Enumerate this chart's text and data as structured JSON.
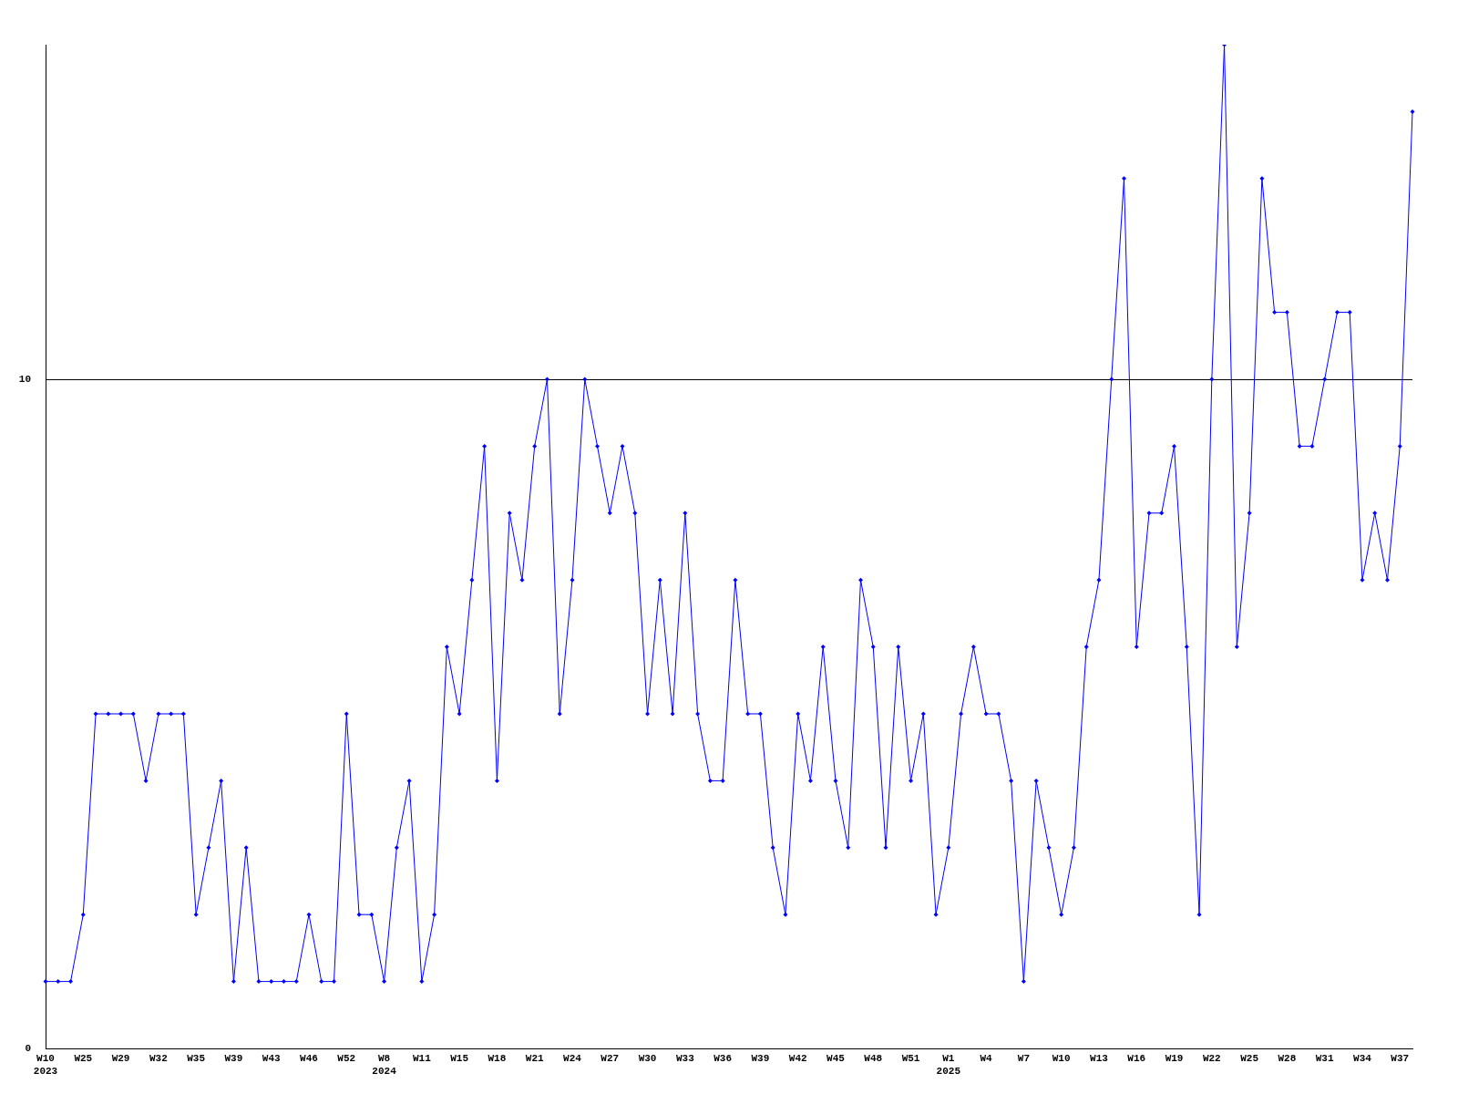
{
  "chart_data": {
    "type": "line",
    "categories": [
      "W10\n2023",
      null,
      null,
      "W25",
      null,
      null,
      "W29",
      null,
      null,
      "W32",
      null,
      null,
      "W35",
      null,
      null,
      "W39",
      null,
      null,
      "W43",
      null,
      null,
      "W46",
      null,
      null,
      "W52",
      null,
      null,
      "W8\n2024",
      null,
      null,
      "W11",
      null,
      null,
      "W15",
      null,
      null,
      "W18",
      null,
      null,
      "W21",
      null,
      null,
      "W24",
      null,
      null,
      "W27",
      null,
      null,
      "W30",
      null,
      null,
      "W33",
      null,
      null,
      "W36",
      null,
      null,
      "W39",
      null,
      null,
      "W42",
      null,
      null,
      "W45",
      null,
      null,
      "W48",
      null,
      null,
      "W51",
      null,
      null,
      "W1\n2025",
      null,
      null,
      "W4",
      null,
      null,
      "W7",
      null,
      null,
      "W10",
      null,
      null,
      "W13",
      null,
      null,
      "W16",
      null,
      null,
      "W19",
      null,
      null,
      "W22",
      null,
      null,
      "W25",
      null,
      null,
      "W28",
      null,
      null,
      "W31",
      null,
      null,
      "W34",
      null,
      null,
      "W37",
      null
    ],
    "series": [
      {
        "color": "#0000ff",
        "values": [
          1,
          1,
          1,
          2,
          5,
          5,
          5,
          5,
          4,
          5,
          5,
          5,
          2,
          3,
          4,
          1,
          3,
          1,
          1,
          1,
          1,
          2,
          1,
          1,
          5,
          2,
          2,
          1,
          3,
          4,
          1,
          2,
          6,
          5,
          7,
          9,
          4,
          8,
          7,
          9,
          10,
          5,
          7,
          10,
          9,
          8,
          9,
          8,
          5,
          7,
          5,
          8,
          5,
          4,
          4,
          7,
          5,
          5,
          3,
          2,
          5,
          4,
          6,
          4,
          3,
          7,
          6,
          3,
          6,
          4,
          5,
          2,
          3,
          5,
          6,
          5,
          5,
          4,
          1,
          4,
          3,
          2,
          3,
          6,
          7,
          10,
          13,
          6,
          8,
          8,
          9,
          6,
          2,
          10,
          15,
          6,
          8,
          13,
          11,
          11,
          9,
          9,
          10,
          11,
          11,
          7,
          8,
          7,
          9,
          14
        ]
      }
    ],
    "ylim": [
      0,
      15
    ],
    "yticks": [
      0,
      10
    ],
    "grid": "y",
    "legend": false,
    "marker": "diamond",
    "line_style": "solid"
  }
}
